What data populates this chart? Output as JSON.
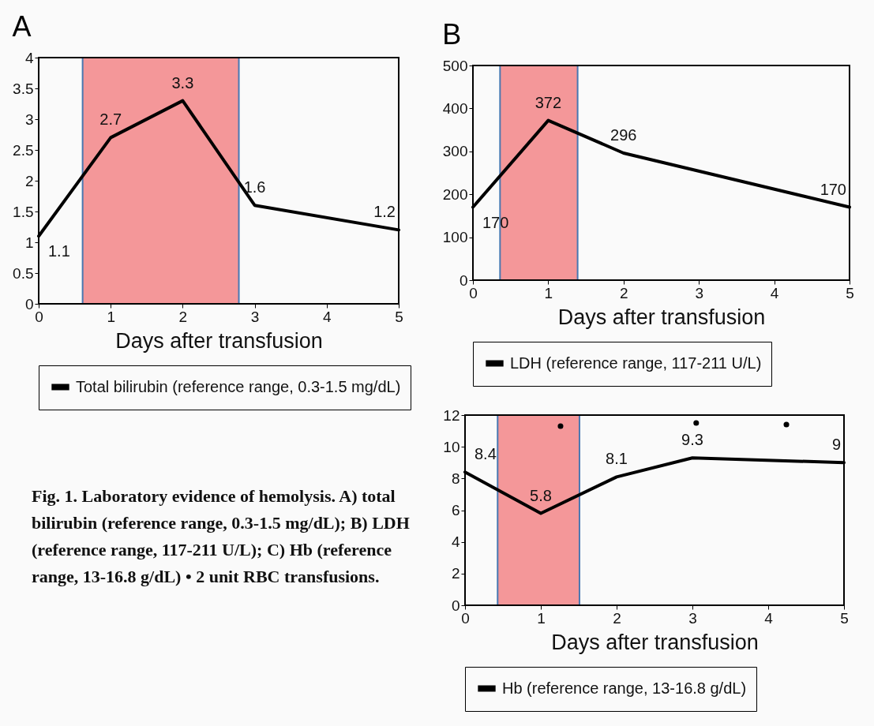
{
  "chart_data": [
    {
      "type": "line",
      "title": "A",
      "xlabel": "Days after transfusion",
      "x": [
        0,
        1,
        2,
        3,
        5
      ],
      "series": [
        {
          "name": "Total bilirubin (reference range, 0.3-1.5 mg/dL)",
          "color": "#000000",
          "values": [
            1.1,
            2.7,
            3.3,
            1.6,
            1.2
          ]
        }
      ],
      "xlim": [
        0,
        5
      ],
      "xticks": [
        0,
        1,
        2,
        3,
        4,
        5
      ],
      "ylim": [
        0,
        4
      ],
      "yticks": [
        0,
        0.5,
        1,
        1.5,
        2,
        2.5,
        3,
        3.5,
        4
      ],
      "data_labels": true,
      "legend": "bottom",
      "bands": [
        {
          "axis": "x",
          "from": 0.61,
          "to": 2.78,
          "color": "#f99a9c"
        }
      ],
      "annotations": [
        "Fig. 1. Laboratory evidence of hemolysis. A) total bilirubin (reference range, 0.3-1.5 mg/dL); B) LDH (reference range, 117-211 U/L); C) Hb (reference range, 13-16.8 g/dL) • 2 unit RBC transfusions."
      ]
    },
    {
      "type": "line",
      "title": "B",
      "xlabel": "Days after transfusion",
      "x": [
        0,
        1,
        2,
        5
      ],
      "series": [
        {
          "name": "LDH (reference range, 117-211 U/L)",
          "color": "#000000",
          "values": [
            170,
            372,
            296,
            170
          ]
        }
      ],
      "xlim": [
        0,
        5
      ],
      "xticks": [
        0,
        1,
        2,
        3,
        4,
        5
      ],
      "ylim": [
        0,
        500
      ],
      "yticks": [
        0,
        100,
        200,
        300,
        400,
        500
      ],
      "data_labels": true,
      "legend": "bottom",
      "bands": [
        {
          "axis": "x",
          "from": 0.36,
          "to": 1.39,
          "color": "#f99a9c"
        }
      ]
    },
    {
      "type": "line",
      "xlabel": "Days after transfusion",
      "x": [
        0,
        1,
        2,
        3,
        5
      ],
      "series": [
        {
          "name": "Hb (reference range, 13-16.8 g/dL)",
          "color": "#000000",
          "values": [
            8.4,
            5.8,
            8.1,
            9.3,
            9
          ],
          "value_labels": [
            "8.4",
            "5.8",
            "8.1",
            "9.3",
            "9"
          ]
        },
        {
          "type": "scatter",
          "color": "#000000",
          "marker": "circle",
          "x": [
            1.26,
            3.05,
            4.24
          ],
          "values": [
            11.3,
            11.5,
            11.4
          ]
        }
      ],
      "xlim": [
        0,
        5
      ],
      "xticks": [
        0,
        1,
        2,
        3,
        4,
        5
      ],
      "ylim": [
        0,
        12
      ],
      "yticks": [
        0,
        2,
        4,
        6,
        8,
        10,
        12
      ],
      "legend": "bottom",
      "bands": [
        {
          "axis": "x",
          "from": 0.43,
          "to": 1.51,
          "color": "#f99a9c"
        }
      ]
    }
  ]
}
